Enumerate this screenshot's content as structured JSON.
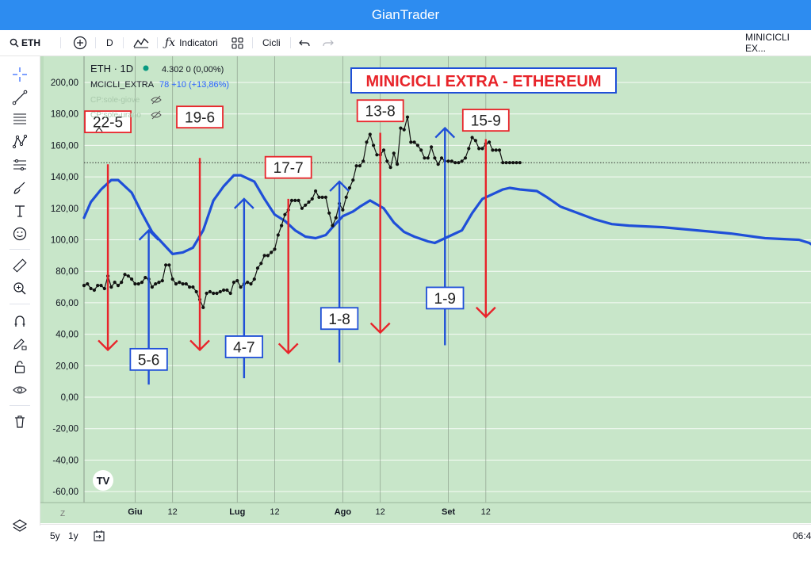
{
  "app_title": "GianTrader",
  "toolbar": {
    "symbol": "ETH",
    "interval": "D",
    "indicators_label": "Indicatori",
    "cycles_label": "Cicli",
    "layout_name": "MINICICLI EX..."
  },
  "legend": {
    "symbol_line": "ETH · 1D",
    "price_line": "4.302  0 (0,00%)",
    "indicator_name": "MCICLI_EXTRA",
    "indicator_values": "78  +10 (+13,86%)",
    "cp1": "CP:sole-giove",
    "cp2": "CP:sole-urano"
  },
  "bottom": {
    "range_5y": "5y",
    "range_1y": "1y",
    "time_partial": "06:4"
  },
  "colors": {
    "chart_bg": "#c8e6c9",
    "blue_line": "#1f4fd8",
    "red_arrow": "#e8242a",
    "price_line": "#111111",
    "title_red": "#e8242a",
    "title_box_border": "#1f4fd8"
  },
  "chart_data": {
    "type": "line",
    "title": "MINICICLI EXTRA - ETHEREUM",
    "ylim": [
      -60,
      200
    ],
    "y_ticks": [
      "200,00",
      "180,00",
      "160,00",
      "140,00",
      "120,00",
      "100,00",
      "80,00",
      "60,00",
      "40,00",
      "20,00",
      "0,00",
      "-20,00",
      "-40,00",
      "-60,00"
    ],
    "x_ticks": [
      "Giu",
      "12",
      "Lug",
      "12",
      "Ago",
      "12",
      "Set",
      "12"
    ],
    "x_corner": "Z",
    "x_tick_days": [
      15,
      26,
      45,
      56,
      76,
      87,
      107,
      118
    ],
    "dotted_level": 149,
    "series": [
      {
        "role": "price",
        "points": [
          [
            0,
            71
          ],
          [
            1,
            72
          ],
          [
            2,
            69
          ],
          [
            3,
            68
          ],
          [
            4,
            71
          ],
          [
            5,
            71
          ],
          [
            6,
            69
          ],
          [
            7,
            77
          ],
          [
            8,
            70
          ],
          [
            9,
            73
          ],
          [
            10,
            71
          ],
          [
            11,
            73
          ],
          [
            12,
            78
          ],
          [
            13,
            77
          ],
          [
            14,
            75
          ],
          [
            15,
            72
          ],
          [
            16,
            72
          ],
          [
            17,
            73
          ],
          [
            18,
            76
          ],
          [
            19,
            75
          ],
          [
            20,
            70
          ],
          [
            21,
            72
          ],
          [
            22,
            73
          ],
          [
            23,
            74
          ],
          [
            24,
            84
          ],
          [
            25,
            84
          ],
          [
            26,
            75
          ],
          [
            27,
            72
          ],
          [
            28,
            73
          ],
          [
            29,
            72
          ],
          [
            30,
            72
          ],
          [
            31,
            70
          ],
          [
            32,
            70
          ],
          [
            33,
            67
          ],
          [
            34,
            62
          ],
          [
            35,
            57
          ],
          [
            36,
            66
          ],
          [
            37,
            67
          ],
          [
            38,
            66
          ],
          [
            39,
            66
          ],
          [
            40,
            67
          ],
          [
            41,
            68
          ],
          [
            42,
            68
          ],
          [
            43,
            66
          ],
          [
            44,
            73
          ],
          [
            45,
            74
          ],
          [
            46,
            70
          ],
          [
            47,
            72
          ],
          [
            48,
            73
          ],
          [
            49,
            72
          ],
          [
            50,
            75
          ],
          [
            51,
            82
          ],
          [
            52,
            85
          ],
          [
            53,
            90
          ],
          [
            54,
            90
          ],
          [
            55,
            92
          ],
          [
            56,
            94
          ],
          [
            57,
            103
          ],
          [
            58,
            109
          ],
          [
            59,
            116
          ],
          [
            60,
            119
          ],
          [
            61,
            125
          ],
          [
            62,
            125
          ],
          [
            63,
            125
          ],
          [
            64,
            120
          ],
          [
            65,
            122
          ],
          [
            66,
            124
          ],
          [
            67,
            126
          ],
          [
            68,
            131
          ],
          [
            69,
            127
          ],
          [
            70,
            127
          ],
          [
            71,
            127
          ],
          [
            72,
            117
          ],
          [
            73,
            109
          ],
          [
            74,
            114
          ],
          [
            75,
            123
          ],
          [
            76,
            119
          ],
          [
            77,
            127
          ],
          [
            78,
            133
          ],
          [
            79,
            138
          ],
          [
            80,
            147
          ],
          [
            81,
            147
          ],
          [
            82,
            150
          ],
          [
            83,
            162
          ],
          [
            84,
            167
          ],
          [
            85,
            160
          ],
          [
            86,
            154
          ],
          [
            87,
            154
          ],
          [
            88,
            157
          ],
          [
            89,
            150
          ],
          [
            90,
            146
          ],
          [
            91,
            155
          ],
          [
            92,
            148
          ],
          [
            93,
            171
          ],
          [
            94,
            170
          ],
          [
            95,
            178
          ],
          [
            96,
            162
          ],
          [
            97,
            162
          ],
          [
            98,
            160
          ],
          [
            99,
            157
          ],
          [
            100,
            152
          ],
          [
            101,
            152
          ],
          [
            102,
            159
          ],
          [
            103,
            152
          ],
          [
            104,
            148
          ],
          [
            105,
            152
          ],
          [
            106,
            150
          ],
          [
            107,
            150
          ],
          [
            108,
            150
          ],
          [
            109,
            149
          ],
          [
            110,
            149
          ],
          [
            111,
            150
          ],
          [
            112,
            152
          ],
          [
            113,
            158
          ],
          [
            114,
            165
          ],
          [
            115,
            163
          ],
          [
            116,
            158
          ],
          [
            117,
            158
          ],
          [
            118,
            161
          ],
          [
            119,
            162
          ],
          [
            120,
            157
          ],
          [
            121,
            157
          ],
          [
            122,
            157
          ],
          [
            123,
            149
          ],
          [
            124,
            149
          ],
          [
            125,
            149
          ],
          [
            126,
            149
          ],
          [
            127,
            149
          ],
          [
            128,
            149
          ]
        ]
      },
      {
        "role": "cycle",
        "points": [
          [
            0,
            114
          ],
          [
            2,
            124
          ],
          [
            5,
            132
          ],
          [
            8,
            138
          ],
          [
            10,
            138
          ],
          [
            14,
            130
          ],
          [
            17,
            117
          ],
          [
            20,
            105
          ],
          [
            23,
            98
          ],
          [
            26,
            91
          ],
          [
            29,
            92
          ],
          [
            32,
            95
          ],
          [
            35,
            106
          ],
          [
            38,
            125
          ],
          [
            41,
            134
          ],
          [
            44,
            141
          ],
          [
            46,
            141
          ],
          [
            50,
            137
          ],
          [
            53,
            126
          ],
          [
            56,
            116
          ],
          [
            59,
            112
          ],
          [
            62,
            106
          ],
          [
            65,
            102
          ],
          [
            68,
            101
          ],
          [
            71,
            103
          ],
          [
            73,
            108
          ],
          [
            76,
            115
          ],
          [
            79,
            118
          ],
          [
            81,
            121
          ],
          [
            84,
            125
          ],
          [
            88,
            120
          ],
          [
            91,
            111
          ],
          [
            94,
            105
          ],
          [
            97,
            102
          ],
          [
            101,
            99
          ],
          [
            103,
            98
          ],
          [
            105,
            100
          ],
          [
            108,
            103
          ],
          [
            111,
            106
          ],
          [
            114,
            117
          ],
          [
            117,
            126
          ],
          [
            120,
            129
          ],
          [
            123,
            132
          ],
          [
            125,
            133
          ],
          [
            128,
            132
          ],
          [
            133,
            131
          ],
          [
            136,
            127
          ],
          [
            140,
            121
          ],
          [
            145,
            117
          ],
          [
            150,
            113
          ],
          [
            155,
            110
          ],
          [
            160,
            109
          ],
          [
            170,
            108
          ],
          [
            180,
            106
          ],
          [
            190,
            104
          ],
          [
            200,
            101
          ],
          [
            210,
            100
          ],
          [
            213,
            98
          ],
          [
            216,
            94
          ],
          [
            219,
            91
          ]
        ]
      }
    ],
    "annotations": [
      {
        "label": "22-5",
        "direction": "down",
        "color": "red",
        "day": 7,
        "from": 148,
        "to": 30,
        "label_y": 175
      },
      {
        "label": "5-6",
        "direction": "up",
        "color": "blue",
        "day": 19,
        "from": 8,
        "to": 106,
        "label_y": 24
      },
      {
        "label": "19-6",
        "direction": "down",
        "color": "red",
        "day": 34,
        "from": 152,
        "to": 30,
        "label_y": 178
      },
      {
        "label": "4-7",
        "direction": "up",
        "color": "blue",
        "day": 47,
        "from": 12,
        "to": 126,
        "label_y": 32
      },
      {
        "label": "17-7",
        "direction": "down",
        "color": "red",
        "day": 60,
        "from": 126,
        "to": 28,
        "label_y": 146
      },
      {
        "label": "1-8",
        "direction": "up",
        "color": "blue",
        "day": 75,
        "from": 22,
        "to": 137,
        "label_y": 50
      },
      {
        "label": "13-8",
        "direction": "down",
        "color": "red",
        "day": 87,
        "from": 168,
        "to": 41,
        "label_y": 182
      },
      {
        "label": "1-9",
        "direction": "up",
        "color": "blue",
        "day": 106,
        "from": 33,
        "to": 171,
        "label_y": 63
      },
      {
        "label": "15-9",
        "direction": "down",
        "color": "red",
        "day": 118,
        "from": 164,
        "to": 51,
        "label_y": 176
      }
    ]
  }
}
